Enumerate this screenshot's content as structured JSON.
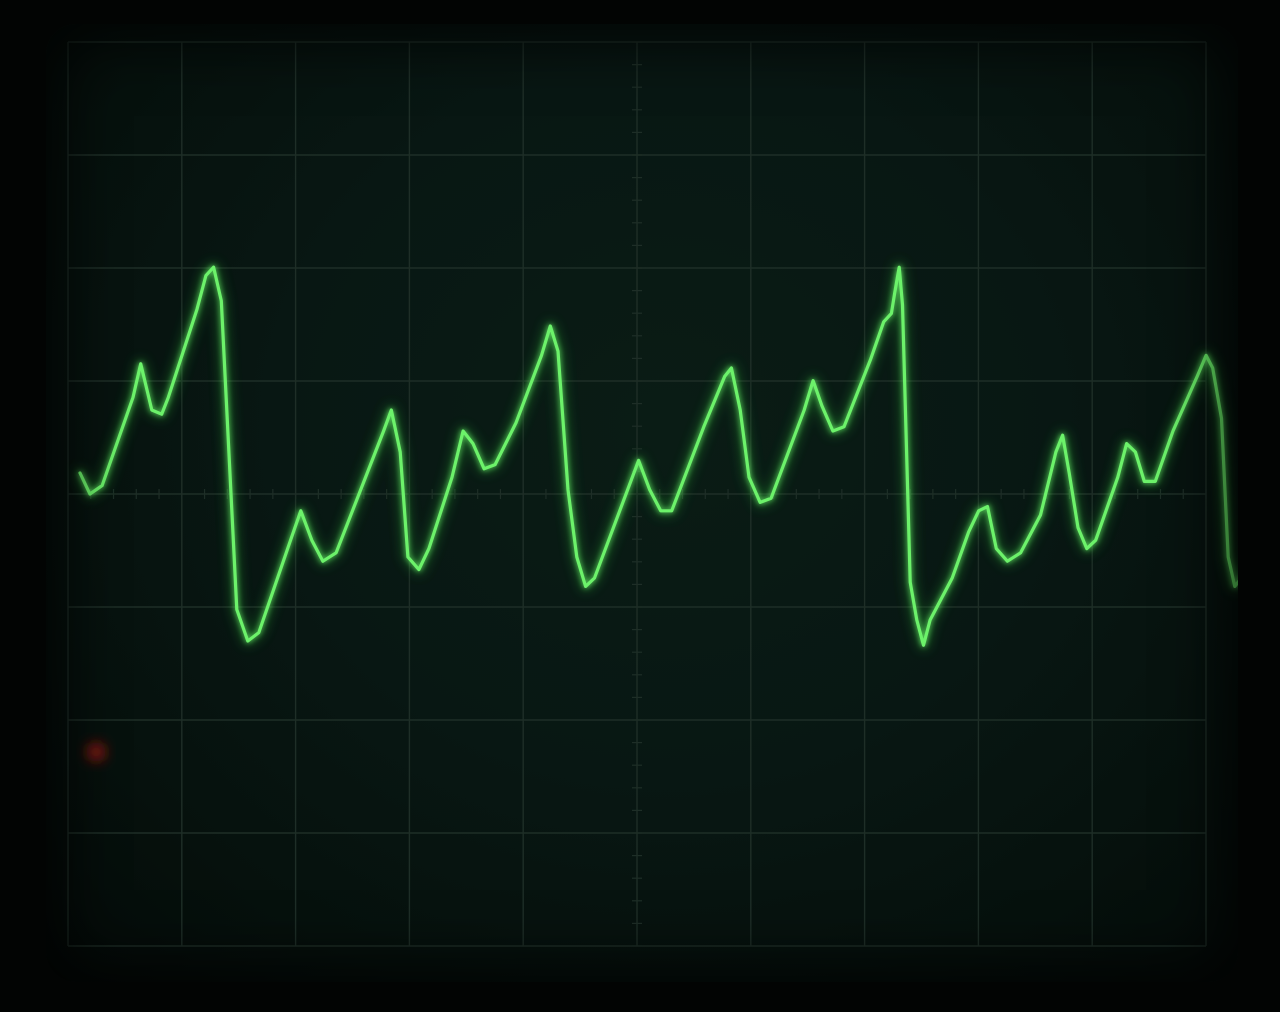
{
  "scope": {
    "screen_color": "#07140f",
    "bezel_color": "#020403",
    "graticule_color": "#1e2e27",
    "trace_color": "#6cf26a",
    "trace_glow_color": "#2fd03a",
    "indicator_color": "#7a1410",
    "grid_divisions_x": 10,
    "grid_divisions_y": 8
  },
  "waveform": {
    "description_type": "sawtooth-like oscilloscope trace",
    "trace": [
      [
        0.0,
        0.1
      ],
      [
        0.009,
        0.0
      ],
      [
        0.02,
        0.04
      ],
      [
        0.048,
        0.46
      ],
      [
        0.055,
        0.62
      ],
      [
        0.065,
        0.4
      ],
      [
        0.074,
        0.38
      ],
      [
        0.08,
        0.46
      ],
      [
        0.106,
        0.88
      ],
      [
        0.114,
        1.04
      ],
      [
        0.121,
        1.08
      ],
      [
        0.128,
        0.92
      ],
      [
        0.142,
        -0.55
      ],
      [
        0.152,
        -0.7
      ],
      [
        0.162,
        -0.66
      ],
      [
        0.192,
        -0.2
      ],
      [
        0.2,
        -0.08
      ],
      [
        0.21,
        -0.22
      ],
      [
        0.22,
        -0.32
      ],
      [
        0.232,
        -0.28
      ],
      [
        0.275,
        0.3
      ],
      [
        0.282,
        0.4
      ],
      [
        0.29,
        0.2
      ],
      [
        0.297,
        -0.3
      ],
      [
        0.307,
        -0.36
      ],
      [
        0.316,
        -0.26
      ],
      [
        0.337,
        0.08
      ],
      [
        0.347,
        0.3
      ],
      [
        0.356,
        0.24
      ],
      [
        0.366,
        0.12
      ],
      [
        0.376,
        0.14
      ],
      [
        0.395,
        0.34
      ],
      [
        0.418,
        0.66
      ],
      [
        0.426,
        0.8
      ],
      [
        0.433,
        0.68
      ],
      [
        0.442,
        0.02
      ],
      [
        0.45,
        -0.3
      ],
      [
        0.458,
        -0.44
      ],
      [
        0.466,
        -0.4
      ],
      [
        0.496,
        0.02
      ],
      [
        0.506,
        0.16
      ],
      [
        0.516,
        0.02
      ],
      [
        0.526,
        -0.08
      ],
      [
        0.536,
        -0.08
      ],
      [
        0.565,
        0.32
      ],
      [
        0.584,
        0.56
      ],
      [
        0.59,
        0.6
      ],
      [
        0.598,
        0.4
      ],
      [
        0.606,
        0.08
      ],
      [
        0.616,
        -0.04
      ],
      [
        0.626,
        -0.02
      ],
      [
        0.656,
        0.4
      ],
      [
        0.664,
        0.54
      ],
      [
        0.672,
        0.42
      ],
      [
        0.682,
        0.3
      ],
      [
        0.692,
        0.32
      ],
      [
        0.716,
        0.64
      ],
      [
        0.728,
        0.82
      ],
      [
        0.735,
        0.86
      ],
      [
        0.738,
        0.96
      ],
      [
        0.742,
        1.08
      ],
      [
        0.745,
        0.9
      ],
      [
        0.752,
        -0.42
      ],
      [
        0.758,
        -0.6
      ],
      [
        0.764,
        -0.72
      ],
      [
        0.77,
        -0.6
      ],
      [
        0.79,
        -0.4
      ],
      [
        0.805,
        -0.18
      ],
      [
        0.814,
        -0.08
      ],
      [
        0.822,
        -0.06
      ],
      [
        0.83,
        -0.26
      ],
      [
        0.84,
        -0.32
      ],
      [
        0.852,
        -0.28
      ],
      [
        0.87,
        -0.1
      ],
      [
        0.884,
        0.2
      ],
      [
        0.89,
        0.28
      ],
      [
        0.896,
        0.1
      ],
      [
        0.904,
        -0.16
      ],
      [
        0.912,
        -0.26
      ],
      [
        0.92,
        -0.22
      ],
      [
        0.94,
        0.08
      ],
      [
        0.948,
        0.24
      ],
      [
        0.956,
        0.2
      ],
      [
        0.964,
        0.06
      ],
      [
        0.974,
        0.06
      ],
      [
        0.99,
        0.3
      ],
      [
        1.012,
        0.56
      ],
      [
        1.02,
        0.66
      ],
      [
        1.026,
        0.6
      ],
      [
        1.034,
        0.36
      ],
      [
        1.04,
        -0.3
      ],
      [
        1.046,
        -0.44
      ],
      [
        1.052,
        -0.4
      ],
      [
        1.064,
        -0.28
      ]
    ]
  }
}
